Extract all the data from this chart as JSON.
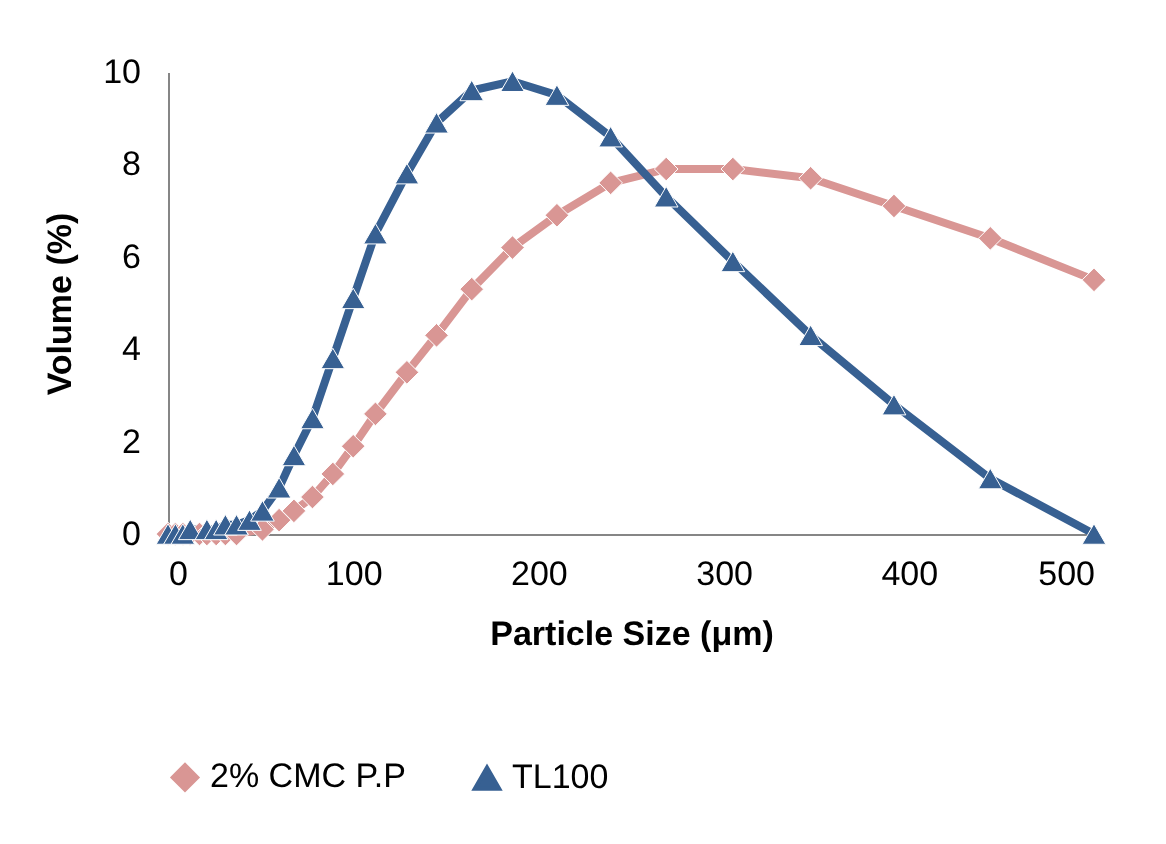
{
  "chart_data": {
    "type": "line",
    "xlabel": "Particle Size (μm)",
    "ylabel": "Volume (%)",
    "x": [
      0,
      4,
      8,
      12,
      17,
      21,
      26,
      31,
      37,
      44,
      51,
      60,
      68,
      78,
      89,
      100,
      112,
      129,
      145,
      164,
      186,
      210,
      239,
      269,
      305,
      347,
      392,
      444,
      500
    ],
    "series": [
      {
        "name": "2% CMC P.P",
        "color": "#d99694",
        "marker": "diamond",
        "values": [
          0,
          0,
          0,
          0,
          0,
          0,
          0,
          0,
          0,
          null,
          0.1,
          0.3,
          0.5,
          0.8,
          1.3,
          1.9,
          2.6,
          3.5,
          4.3,
          5.3,
          6.2,
          6.9,
          7.6,
          7.9,
          7.9,
          7.7,
          7.1,
          6.4,
          5.5
        ]
      },
      {
        "name": "TL100",
        "color": "#376092",
        "marker": "triangle",
        "values": [
          0,
          0,
          0,
          0.1,
          null,
          0.1,
          0.1,
          0.2,
          0.2,
          0.3,
          0.5,
          1.0,
          1.7,
          2.5,
          3.8,
          5.1,
          6.5,
          7.8,
          8.9,
          9.6,
          9.8,
          9.5,
          8.6,
          7.3,
          5.9,
          4.3,
          2.8,
          1.2,
          0
        ]
      }
    ],
    "xlim": [
      0,
      500
    ],
    "xticks": [
      0,
      100,
      200,
      300,
      400,
      500
    ],
    "ylim": [
      0,
      10
    ],
    "yticks": [
      0,
      2,
      4,
      6,
      8,
      10
    ],
    "grid": false,
    "legend": "bottom",
    "line_style": "solid"
  }
}
